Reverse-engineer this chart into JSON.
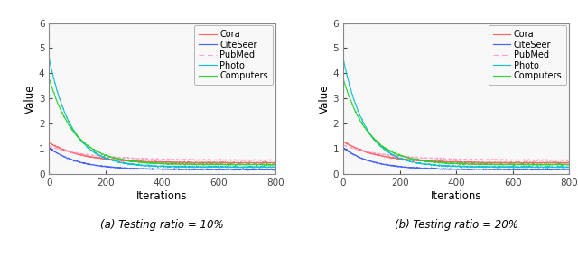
{
  "datasets": [
    "Cora",
    "CiteSeer",
    "PubMed",
    "Photo",
    "Computers"
  ],
  "colors": [
    "#FF5555",
    "#3355FF",
    "#FF99CC",
    "#00BBCC",
    "#22CC22"
  ],
  "linestyles": [
    "-",
    "-",
    "--",
    "-",
    "-"
  ],
  "n_iters": 800,
  "ylim": [
    0,
    6
  ],
  "yticks": [
    0,
    1,
    2,
    3,
    4,
    5,
    6
  ],
  "xticks": [
    0,
    200,
    400,
    600,
    800
  ],
  "xlabel": "Iterations",
  "ylabel": "Value",
  "subplot_labels": [
    "(a) Testing ratio = 10%",
    "(b) Testing ratio = 20%"
  ],
  "panel_a": {
    "Cora": {
      "start": 1.25,
      "end": 0.45,
      "decay": 120,
      "noise": 0.012
    },
    "CiteSeer": {
      "start": 1.05,
      "end": 0.18,
      "decay": 100,
      "noise": 0.01
    },
    "PubMed": {
      "start": 1.1,
      "end": 0.55,
      "decay": 150,
      "noise": 0.012
    },
    "Photo": {
      "start": 4.6,
      "end": 0.28,
      "decay": 80,
      "noise": 0.015
    },
    "Computers": {
      "start": 3.8,
      "end": 0.38,
      "decay": 90,
      "noise": 0.015
    }
  },
  "panel_b": {
    "Cora": {
      "start": 1.3,
      "end": 0.45,
      "decay": 120,
      "noise": 0.012
    },
    "CiteSeer": {
      "start": 1.05,
      "end": 0.18,
      "decay": 100,
      "noise": 0.01
    },
    "PubMed": {
      "start": 1.15,
      "end": 0.55,
      "decay": 150,
      "noise": 0.012
    },
    "Photo": {
      "start": 4.6,
      "end": 0.28,
      "decay": 80,
      "noise": 0.015
    },
    "Computers": {
      "start": 3.8,
      "end": 0.38,
      "decay": 90,
      "noise": 0.015
    }
  },
  "fig_width": 6.4,
  "fig_height": 2.84,
  "dpi": 100
}
